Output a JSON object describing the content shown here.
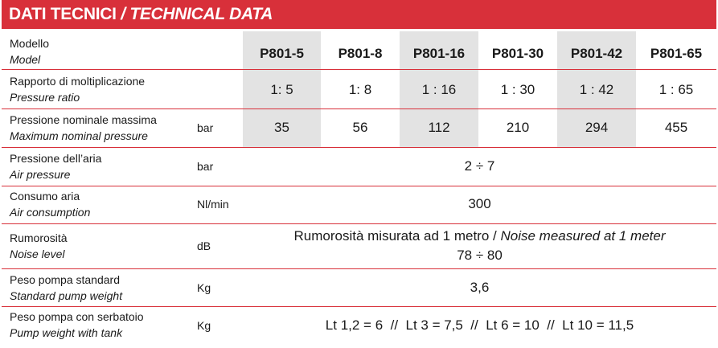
{
  "title": {
    "it": "DATI TECNICI",
    "separator": "/",
    "en": "TECHNICAL DATA"
  },
  "colors": {
    "accent": "#d8303a",
    "shade": "#e3e3e3"
  },
  "models": [
    "P801-5",
    "P801-8",
    "P801-16",
    "P801-30",
    "P801-42",
    "P801-65"
  ],
  "rows": {
    "model": {
      "it": "Modello",
      "en": "Model"
    },
    "ratio": {
      "it": "Rapporto di moltiplicazione",
      "en": "Pressure ratio",
      "values": [
        "1: 5",
        "1: 8",
        "1 : 16",
        "1 : 30",
        "1 : 42",
        "1 : 65"
      ]
    },
    "pressure": {
      "it": "Pressione nominale massima",
      "en": "Maximum nominal pressure",
      "unit": "bar",
      "values": [
        "35",
        "56",
        "112",
        "210",
        "294",
        "455"
      ]
    },
    "air_pressure": {
      "it": "Pressione dell’aria",
      "en": "Air pressure",
      "unit": "bar",
      "value": "2 ÷ 7"
    },
    "air_consumption": {
      "it": "Consumo aria",
      "en": "Air consumption",
      "unit": "Nl/min",
      "value": "300"
    },
    "noise": {
      "it": "Rumorosità",
      "en": "Noise level",
      "unit": "dB",
      "note_it": "Rumorosità misurata ad 1 metro / ",
      "note_en": "Noise measured at 1 meter",
      "value": "78 ÷ 80"
    },
    "weight": {
      "it": "Peso pompa standard",
      "en": "Standard pump weight",
      "unit": "Kg",
      "value": "3,6"
    },
    "weight_tank": {
      "it": "Peso pompa con serbatoio",
      "en": "Pump weight with tank",
      "unit": "Kg",
      "value": "Lt 1,2 = 6  //  Lt 3 = 7,5  //  Lt 6 = 10  //  Lt 10 = 11,5"
    }
  }
}
